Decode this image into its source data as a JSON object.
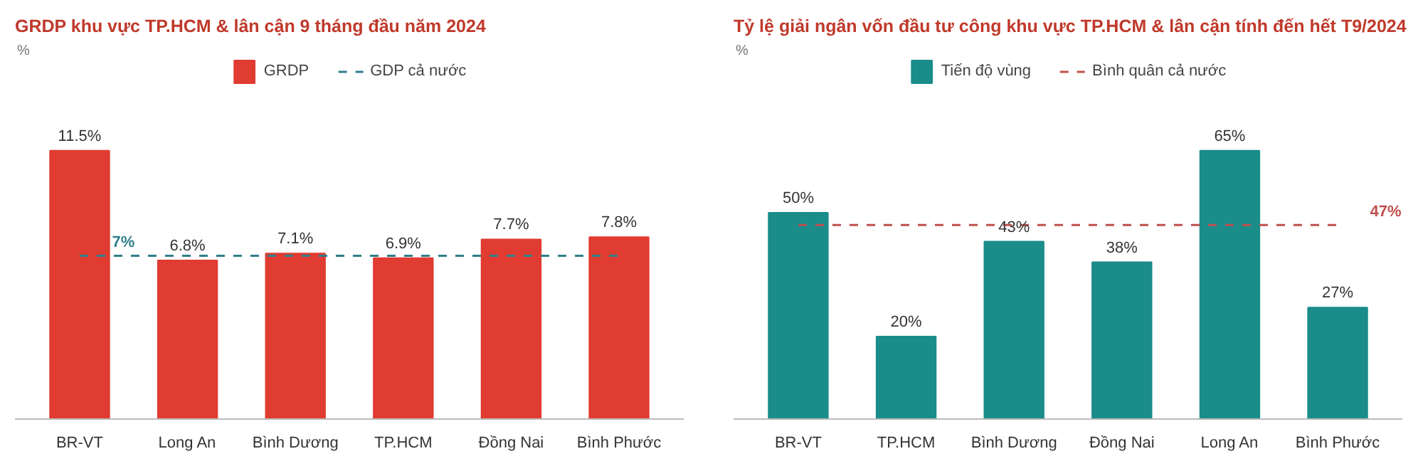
{
  "chart_data": [
    {
      "type": "bar",
      "title": "GRDP khu vực TP.HCM & lân cận 9 tháng đầu năm 2024",
      "subtitle": "%",
      "categories": [
        "BR-VT",
        "Long An",
        "Bình Dương",
        "TP.HCM",
        "Đồng Nai",
        "Bình Phước"
      ],
      "series": [
        {
          "name": "GRDP",
          "color": "#e03c31",
          "values": [
            11.5,
            6.8,
            7.1,
            6.9,
            7.7,
            7.8
          ],
          "value_labels": [
            "11.5%",
            "6.8%",
            "7.1%",
            "6.9%",
            "7.7%",
            "7.8%"
          ]
        },
        {
          "name": "GDP cả nước",
          "type": "line",
          "color": "#2f7f8a",
          "line_style": "dashed",
          "values": [
            7,
            7,
            7,
            7,
            7,
            7
          ]
        }
      ],
      "annotations": [
        {
          "text": "7%",
          "x": "BR-VT",
          "y": 7
        }
      ],
      "legend": "top",
      "grid": false
    },
    {
      "type": "bar",
      "title": "Tỷ lệ giải ngân vốn đầu tư công khu vực TP.HCM & lân cận tính đến hết T9/2024",
      "subtitle": "%",
      "categories": [
        "BR-VT",
        "TP.HCM",
        "Bình Dương",
        "Đồng Nai",
        "Long An",
        "Bình Phước"
      ],
      "series": [
        {
          "name": "Tiến độ vùng",
          "color": "#1a8c8a",
          "values": [
            50,
            20,
            43,
            38,
            65,
            27
          ],
          "value_labels": [
            "50%",
            "20%",
            "43%",
            "38%",
            "65%",
            "27%"
          ]
        },
        {
          "name": "Bình quân cả nước",
          "type": "line",
          "color": "#c0504d",
          "line_style": "dashed",
          "values": [
            47,
            47,
            47,
            47,
            47,
            47
          ]
        }
      ],
      "annotations": [
        {
          "text": "47%",
          "x": "Bình Phước",
          "y": 47
        }
      ],
      "legend": "top",
      "grid": false
    }
  ]
}
